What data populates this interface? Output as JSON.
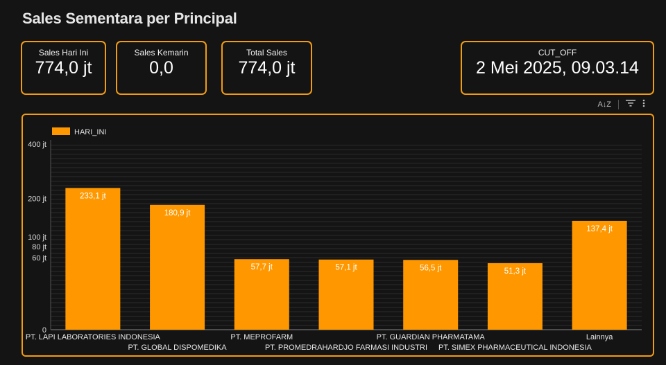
{
  "page": {
    "title": "Sales Sementara per Principal"
  },
  "kpis": {
    "sales_hari_ini": {
      "label": "Sales Hari Ini",
      "value": "774,0 jt"
    },
    "sales_kemarin": {
      "label": "Sales Kemarin",
      "value": "0,0"
    },
    "total_sales": {
      "label": "Total Sales",
      "value": "774,0 jt"
    },
    "cut_off": {
      "label": "CUT_OFF",
      "value": "2 Mei 2025, 09.03.14"
    }
  },
  "toolbar": {
    "sort_label": "A↓Z"
  },
  "colors": {
    "bar": "#ff9800",
    "accent": "#f39c12",
    "background": "#141414"
  },
  "chart_data": {
    "type": "bar",
    "title": "",
    "xlabel": "",
    "ylabel": "",
    "scale": "sqrt",
    "ylim": [
      0,
      400
    ],
    "yticks": [
      0,
      60,
      80,
      100,
      200,
      400
    ],
    "ytick_labels": [
      "0",
      "60 jt",
      "80 jt",
      "100 jt",
      "200 jt",
      "400 jt"
    ],
    "legend_position": "top-left",
    "categories": [
      "PT. LAPI LABORATORIES INDONESIA",
      "PT. GLOBAL DISPOMEDIKA",
      "PT. MEPROFARM",
      "PT. PROMEDRAHARDJO FARMASI INDUSTRI",
      "PT. GUARDIAN PHARMATAMA",
      "PT. SIMEX PHARMACEUTICAL INDONESIA",
      "Lainnya"
    ],
    "series": [
      {
        "name": "HARI_INI",
        "values": [
          233.1,
          180.9,
          57.7,
          57.1,
          56.5,
          51.3,
          137.4
        ],
        "labels": [
          "233,1 jt",
          "180,9 jt",
          "57,7 jt",
          "57,1 jt",
          "56,5 jt",
          "51,3 jt",
          "137,4 jt"
        ]
      }
    ]
  }
}
